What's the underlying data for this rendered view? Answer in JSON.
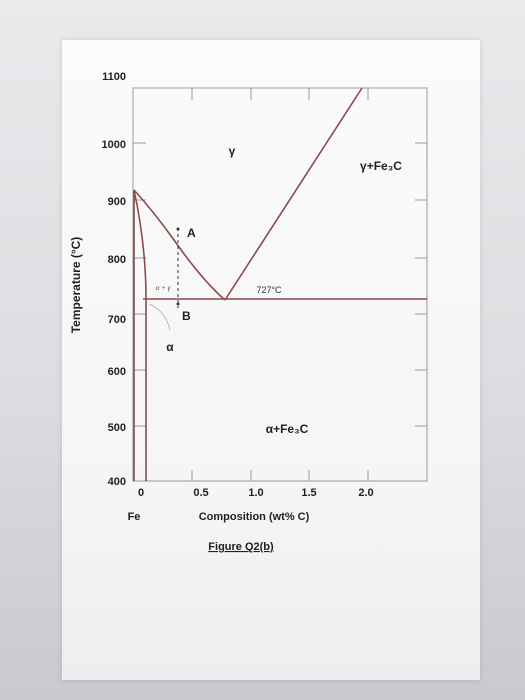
{
  "diagram": {
    "y_ticks": [
      "1100",
      "1000",
      "900",
      "800",
      "700",
      "600",
      "500",
      "400"
    ],
    "x_ticks": [
      "0",
      "0.5",
      "1.0",
      "1.5",
      "2.0"
    ],
    "x_sub": "Fe",
    "ylabel": "Temperature (°C)",
    "xlabel": "Composition (wt% C)",
    "caption": "Figure Q2(b)",
    "regions": {
      "gamma": "γ",
      "gamma_fe3c": "γ+Fe₃C",
      "alpha_gamma": "α + γ",
      "alpha": "α",
      "alpha_fe3c": "α+Fe₃C"
    },
    "eutectoid_temp": "727°C",
    "point_a": "A",
    "point_b": "B",
    "line_color": "#8a4a4a"
  }
}
